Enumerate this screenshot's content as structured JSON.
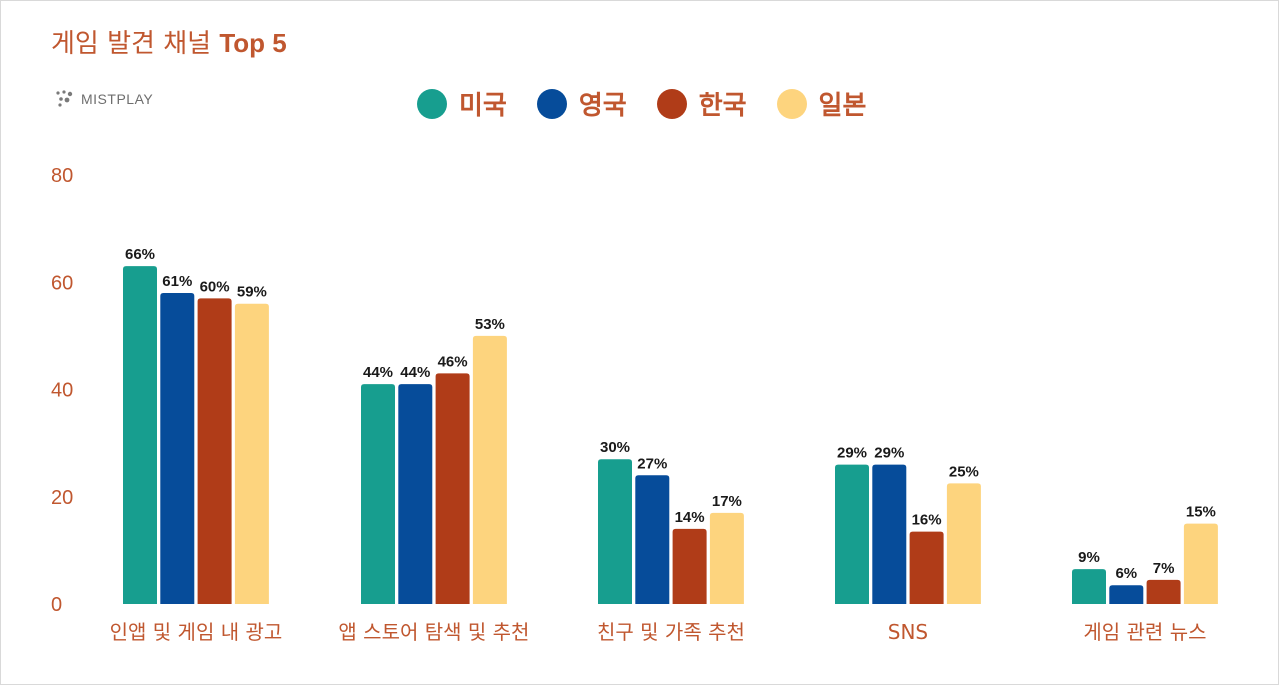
{
  "title": {
    "main": "게임 발견 채널",
    "accent": "Top 5"
  },
  "logo_text": "MISTPLAY",
  "chart_data": {
    "type": "bar",
    "title": "게임 발견 채널 Top 5",
    "categories": [
      "인앱 및 게임 내 광고",
      "앱 스토어 탐색 및 추천",
      "친구 및 가족 추천",
      "SNS",
      "게임 관련 뉴스"
    ],
    "series": [
      {
        "name": "미국",
        "color": "#179e8f",
        "values": [
          63,
          41,
          27,
          26,
          6.5
        ],
        "labels": [
          "66%",
          "44%",
          "30%",
          "29%",
          "9%"
        ]
      },
      {
        "name": "영국",
        "color": "#064c9a",
        "values": [
          58,
          41,
          24,
          26,
          3.5
        ],
        "labels": [
          "61%",
          "44%",
          "27%",
          "29%",
          "6%"
        ]
      },
      {
        "name": "한국",
        "color": "#b03c18",
        "values": [
          57,
          43,
          14,
          13.5,
          4.5
        ],
        "labels": [
          "60%",
          "46%",
          "14%",
          "16%",
          "7%"
        ]
      },
      {
        "name": "일본",
        "color": "#fdd47e",
        "values": [
          56,
          50,
          17,
          22.5,
          15
        ],
        "labels": [
          "59%",
          "53%",
          "17%",
          "25%",
          "15%"
        ]
      }
    ],
    "ylim": [
      0,
      80
    ],
    "yticks": [
      "80",
      "60",
      "40",
      "20",
      "0"
    ],
    "grid": false,
    "legend_position": "top-center"
  }
}
